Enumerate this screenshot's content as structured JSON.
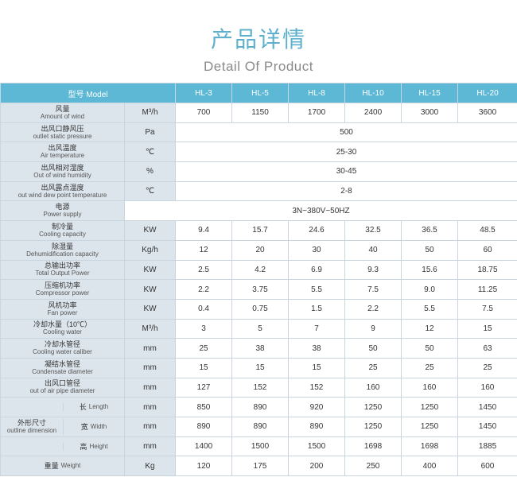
{
  "header": {
    "title_cn": "产品详情",
    "title_en": "Detail Of Product"
  },
  "table": {
    "head": {
      "label": "型号 Model",
      "models": [
        "HL-3",
        "HL-5",
        "HL-8",
        "HL-10",
        "HL-15",
        "HL-20"
      ]
    },
    "rows": [
      {
        "cn": "风量",
        "en": "Amount of wind",
        "unit": "M³/h",
        "values": [
          "700",
          "1150",
          "1700",
          "2400",
          "3000",
          "3600"
        ]
      },
      {
        "cn": "出风口静风压",
        "en": "outlet static pressure",
        "unit": "Pa",
        "span": "500"
      },
      {
        "cn": "出风温度",
        "en": "Air temperature",
        "unit": "℃",
        "span": "25-30"
      },
      {
        "cn": "出风相对湿度",
        "en": "Out of wind humidity",
        "unit": "%",
        "span": "30-45"
      },
      {
        "cn": "出风露点温度",
        "en": "out wind dew point temperature",
        "unit": "℃",
        "span": "2-8"
      },
      {
        "cn": "电源",
        "en": "Power supply",
        "span_all": "3N~380V~50HZ"
      },
      {
        "cn": "制冷量",
        "en": "Cooling capacity",
        "unit": "KW",
        "values": [
          "9.4",
          "15.7",
          "24.6",
          "32.5",
          "36.5",
          "48.5"
        ]
      },
      {
        "cn": "除湿量",
        "en": "Dehumidification capacity",
        "unit": "Kg/h",
        "values": [
          "12",
          "20",
          "30",
          "40",
          "50",
          "60"
        ]
      },
      {
        "cn": "总输出功率",
        "en": "Total Output Power",
        "unit": "KW",
        "values": [
          "2.5",
          "4.2",
          "6.9",
          "9.3",
          "15.6",
          "18.75"
        ]
      },
      {
        "cn": "压缩机功率",
        "en": "Compressor power",
        "unit": "KW",
        "values": [
          "2.2",
          "3.75",
          "5.5",
          "7.5",
          "9.0",
          "11.25"
        ]
      },
      {
        "cn": "风机功率",
        "en": "Fan power",
        "unit": "KW",
        "values": [
          "0.4",
          "0.75",
          "1.5",
          "2.2",
          "5.5",
          "7.5"
        ]
      },
      {
        "cn": "冷却水量（10℃）",
        "en": "Cooling water",
        "unit": "M³/h",
        "values": [
          "3",
          "5",
          "7",
          "9",
          "12",
          "15"
        ]
      },
      {
        "cn": "冷却水管径",
        "en": "Cooling water caliber",
        "unit": "mm",
        "values": [
          "25",
          "38",
          "38",
          "50",
          "50",
          "63"
        ]
      },
      {
        "cn": "凝结水管径",
        "en": "Condensate diameter",
        "unit": "mm",
        "values": [
          "15",
          "15",
          "15",
          "25",
          "25",
          "25"
        ]
      },
      {
        "cn": "出风口管径",
        "en": "out of air pipe diameter",
        "unit": "mm",
        "values": [
          "127",
          "152",
          "152",
          "160",
          "160",
          "160"
        ]
      }
    ],
    "dimension": {
      "cn": "外形尺寸",
      "en": "outline dimension",
      "rows": [
        {
          "cn": "长",
          "en": "Length",
          "unit": "mm",
          "values": [
            "850",
            "890",
            "920",
            "1250",
            "1250",
            "1450"
          ]
        },
        {
          "cn": "宽",
          "en": "Width",
          "unit": "mm",
          "values": [
            "890",
            "890",
            "890",
            "1250",
            "1250",
            "1450"
          ]
        },
        {
          "cn": "高",
          "en": "Height",
          "unit": "mm",
          "values": [
            "1400",
            "1500",
            "1500",
            "1698",
            "1698",
            "1885"
          ]
        }
      ]
    },
    "weight": {
      "cn": "重量",
      "en": "Weight",
      "unit": "Kg",
      "values": [
        "120",
        "175",
        "200",
        "250",
        "400",
        "600"
      ]
    }
  }
}
